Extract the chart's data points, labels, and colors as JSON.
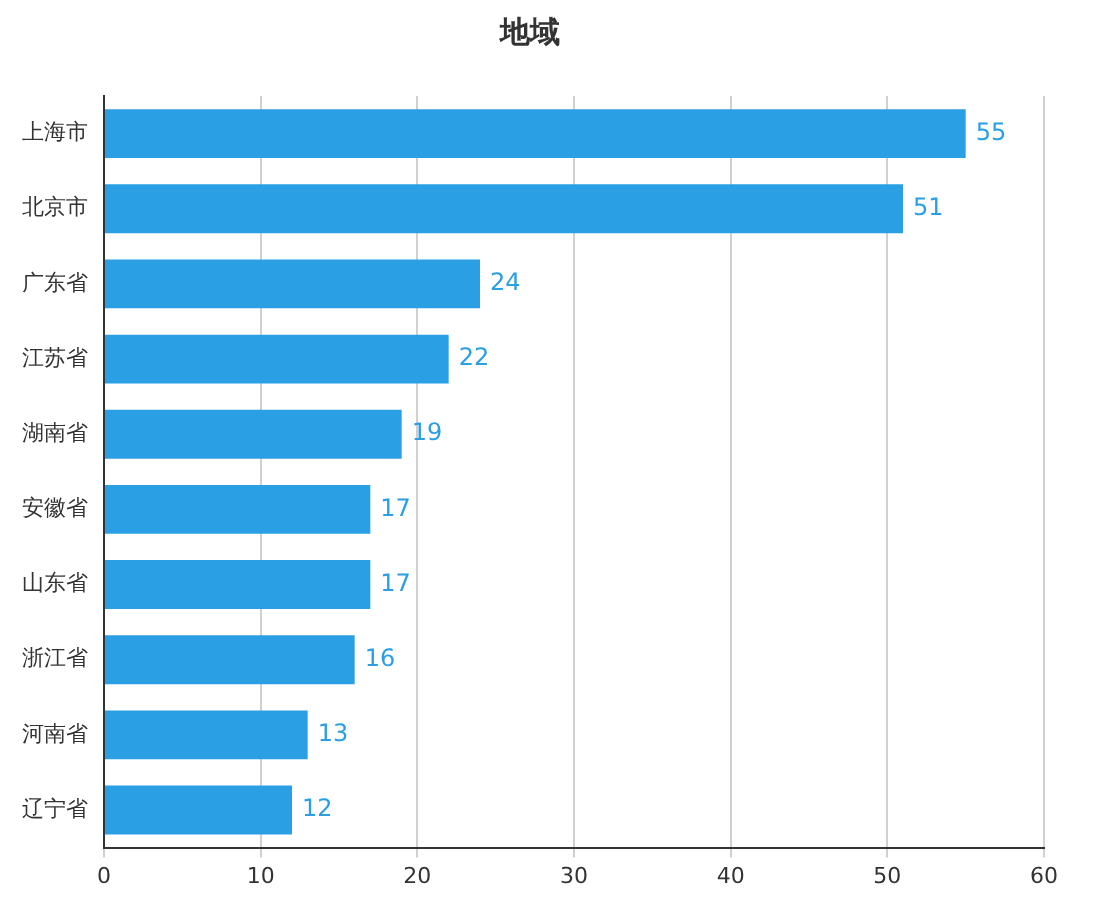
{
  "chart_data": {
    "type": "bar",
    "orientation": "horizontal",
    "title": "地域",
    "categories": [
      "上海市",
      "北京市",
      "广东省",
      "江苏省",
      "湖南省",
      "安徽省",
      "山东省",
      "浙江省",
      "河南省",
      "辽宁省"
    ],
    "values": [
      55,
      51,
      24,
      22,
      19,
      17,
      17,
      16,
      13,
      12
    ],
    "color": "#2b9fe3",
    "xlim": [
      0,
      60
    ],
    "xticks": [
      0,
      10,
      20,
      30,
      40,
      50,
      60
    ],
    "grid": "x",
    "data_labels": true
  }
}
